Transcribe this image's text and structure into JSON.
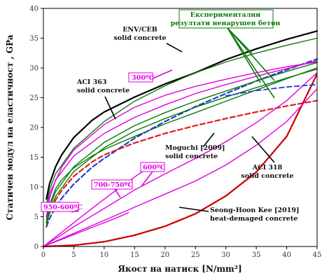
{
  "chart_data": {
    "type": "line",
    "xlabel": "Якост на натиск [N/mm²]",
    "ylabel": "Статичен модул на еластичност , GPa",
    "xlim": [
      0,
      45
    ],
    "ylim": [
      0,
      40
    ],
    "xticks": [
      "0",
      "5",
      "10",
      "15",
      "20",
      "25",
      "30",
      "35",
      "40",
      "45"
    ],
    "yticks": [
      "0",
      "5",
      "10",
      "15",
      "20",
      "25",
      "30",
      "35",
      "40"
    ],
    "grid": false,
    "series": [
      {
        "name": "ENV/CEB solid concrete",
        "color": "#000000",
        "dash": "",
        "width": 2.2,
        "points": [
          [
            0.5,
            8
          ],
          [
            1,
            10.5
          ],
          [
            2,
            13.4
          ],
          [
            3,
            15.4
          ],
          [
            5,
            18.3
          ],
          [
            8,
            21.2
          ],
          [
            10,
            22.6
          ],
          [
            15,
            25.1
          ],
          [
            20,
            27.3
          ],
          [
            25,
            29.2
          ],
          [
            30,
            31.4
          ],
          [
            35,
            33.2
          ],
          [
            40,
            34.8
          ],
          [
            45,
            36.2
          ]
        ]
      },
      {
        "name": "ACI 363 solid concrete",
        "color": "#0a7a0a",
        "dash": "",
        "width": 1.4,
        "points": [
          [
            0.5,
            4.5
          ],
          [
            1,
            7
          ],
          [
            2,
            9.7
          ],
          [
            3,
            11.2
          ],
          [
            5,
            13.2
          ],
          [
            8,
            15.2
          ],
          [
            10,
            16.3
          ],
          [
            15,
            18.5
          ],
          [
            20,
            20.6
          ],
          [
            25,
            22.5
          ],
          [
            30,
            24.4
          ],
          [
            35,
            26.3
          ],
          [
            40,
            28.2
          ],
          [
            45,
            30
          ]
        ]
      },
      {
        "name": "ACI 318 solid concrete",
        "color": "#2040d0",
        "dash": "7,4",
        "width": 2.2,
        "points": [
          [
            0.5,
            3.3
          ],
          [
            1,
            4.7
          ],
          [
            2,
            6.6
          ],
          [
            3,
            8.1
          ],
          [
            5,
            10.5
          ],
          [
            8,
            13.3
          ],
          [
            10,
            14.8
          ],
          [
            15,
            18.2
          ],
          [
            20,
            21
          ],
          [
            25,
            23.5
          ],
          [
            30,
            25.7
          ],
          [
            35,
            27.8
          ],
          [
            40,
            29.7
          ],
          [
            45,
            31.5
          ]
        ]
      },
      {
        "name": "Moguchi [2009] solid concrete",
        "color": "#e02020",
        "dash": "7,4",
        "width": 2.2,
        "points": [
          [
            0.5,
            4
          ],
          [
            1,
            5.6
          ],
          [
            2,
            7.8
          ],
          [
            3,
            9.4
          ],
          [
            5,
            11.8
          ],
          [
            8,
            14.2
          ],
          [
            10,
            15.4
          ],
          [
            15,
            17.4
          ],
          [
            20,
            19
          ],
          [
            25,
            20.3
          ],
          [
            30,
            21.5
          ],
          [
            35,
            22.6
          ],
          [
            40,
            23.6
          ],
          [
            45,
            24.5
          ]
        ]
      },
      {
        "name": "Seong-Hoon Kee [2019] heat-demaged concrete",
        "color": "#cc0000",
        "dash": "2,2",
        "width": 2.4,
        "points": [
          [
            0,
            0
          ],
          [
            5,
            0.2
          ],
          [
            10,
            0.8
          ],
          [
            15,
            1.9
          ],
          [
            20,
            3.4
          ],
          [
            25,
            5.5
          ],
          [
            30,
            8.5
          ],
          [
            35,
            12.5
          ],
          [
            40,
            18.5
          ],
          [
            45,
            29
          ]
        ]
      },
      {
        "name": "300ºC",
        "color": "#e000e0",
        "dash": "",
        "width": 1.4,
        "points": [
          [
            0.5,
            5
          ],
          [
            1,
            8
          ],
          [
            2,
            11.2
          ],
          [
            5,
            15.2
          ],
          [
            10,
            19
          ],
          [
            15,
            21.7
          ],
          [
            20,
            23.8
          ],
          [
            25,
            25.7
          ],
          [
            30,
            27.2
          ],
          [
            35,
            28.6
          ],
          [
            40,
            29.9
          ],
          [
            45,
            31.2
          ]
        ]
      },
      {
        "name": "300ºC",
        "color": "#e000e0",
        "dash": "",
        "width": 1.4,
        "points": [
          [
            0.5,
            6
          ],
          [
            1,
            8.8
          ],
          [
            3,
            13.3
          ],
          [
            5,
            16.2
          ],
          [
            10,
            20.5
          ],
          [
            15,
            23.4
          ],
          [
            20,
            25.4
          ],
          [
            25,
            26.9
          ],
          [
            30,
            28.1
          ],
          [
            35,
            29.2
          ],
          [
            40,
            30.2
          ],
          [
            45,
            31
          ]
        ]
      },
      {
        "name": "600ºC",
        "color": "#e000e0",
        "dash": "",
        "width": 1.4,
        "points": [
          [
            0,
            0
          ],
          [
            5,
            2.2
          ],
          [
            10,
            4.4
          ],
          [
            15,
            6.6
          ],
          [
            20,
            8.8
          ],
          [
            25,
            11
          ],
          [
            30,
            13.7
          ],
          [
            35,
            17
          ],
          [
            40,
            21
          ],
          [
            45,
            26.5
          ]
        ]
      },
      {
        "name": "600ºC",
        "color": "#e000e0",
        "dash": "",
        "width": 1.4,
        "points": [
          [
            0,
            0
          ],
          [
            5,
            3.3
          ],
          [
            10,
            6.4
          ],
          [
            15,
            9.5
          ],
          [
            20,
            12.2
          ],
          [
            25,
            14.8
          ],
          [
            30,
            17.6
          ],
          [
            35,
            20.8
          ],
          [
            40,
            24.5
          ],
          [
            45,
            29.2
          ]
        ]
      },
      {
        "name": "700-750ºC",
        "color": "#e000e0",
        "dash": "",
        "width": 1.4,
        "points": [
          [
            0,
            0
          ],
          [
            4,
            3.2
          ],
          [
            8,
            6.4
          ],
          [
            12,
            9.5
          ],
          [
            16,
            12.4
          ],
          [
            19,
            14
          ]
        ]
      },
      {
        "name": "950-600ºC",
        "color": "#e000e0",
        "dash": "",
        "width": 1.4,
        "points": [
          [
            0,
            0
          ],
          [
            3,
            1.2
          ],
          [
            6,
            2.4
          ],
          [
            9,
            3.6
          ],
          [
            12,
            4.8
          ],
          [
            14,
            5.7
          ]
        ]
      },
      {
        "name": "Експериментални резултати ненарушен бетон",
        "color": "#0a7a0a",
        "dash": "",
        "width": 1.4,
        "points": [
          [
            0.5,
            7
          ],
          [
            1,
            9.5
          ],
          [
            2,
            12.2
          ],
          [
            5,
            16.5
          ],
          [
            10,
            21
          ],
          [
            15,
            24.4
          ],
          [
            20,
            27
          ],
          [
            25,
            29.2
          ],
          [
            30,
            31
          ],
          [
            35,
            32.5
          ],
          [
            40,
            33.8
          ],
          [
            45,
            35
          ]
        ]
      },
      {
        "name": "Експериментални резултати ненарушен бетон",
        "color": "#0a7a0a",
        "dash": "",
        "width": 1.4,
        "points": [
          [
            0.5,
            3.5
          ],
          [
            1,
            5.8
          ],
          [
            2,
            8.4
          ],
          [
            5,
            12.6
          ],
          [
            10,
            16.6
          ],
          [
            15,
            19.4
          ],
          [
            20,
            21.5
          ],
          [
            25,
            23.4
          ],
          [
            30,
            25.1
          ],
          [
            35,
            26.7
          ],
          [
            40,
            28.3
          ],
          [
            45,
            29.8
          ]
        ]
      },
      {
        "name": "Експериментални резултати ненарушен бетон",
        "color": "#0a7a0a",
        "dash": "",
        "width": 1.4,
        "points": [
          [
            0.5,
            4
          ],
          [
            1,
            6.5
          ],
          [
            2,
            9.2
          ],
          [
            5,
            13.4
          ],
          [
            10,
            17.5
          ],
          [
            15,
            20.3
          ],
          [
            20,
            22.5
          ],
          [
            25,
            24.4
          ],
          [
            30,
            26.1
          ],
          [
            35,
            27.8
          ],
          [
            40,
            29.4
          ],
          [
            45,
            30.9
          ]
        ]
      },
      {
        "name": "ACI 318 solid concrete",
        "color": "#2040d0",
        "dash": "7,4",
        "width": 1.8,
        "points": [
          [
            30,
            25.3
          ],
          [
            35,
            26.2
          ],
          [
            40,
            26.8
          ],
          [
            45,
            27.2
          ]
        ]
      }
    ],
    "annotations": [
      {
        "text": "ENV/CEB",
        "style": "annot"
      },
      {
        "text": "solid concrete",
        "style": "annot"
      },
      {
        "text": "Експериментални",
        "style": "annot-green"
      },
      {
        "text": "резултати ненарушен бетон",
        "style": "annot-green"
      },
      {
        "text": "ACI 363",
        "style": "annot"
      },
      {
        "text": "solid concrete",
        "style": "annot"
      },
      {
        "text": "300ºC",
        "style": "annot-magenta"
      },
      {
        "text": "Moguchi [2009]",
        "style": "annot"
      },
      {
        "text": "solid concrete",
        "style": "annot"
      },
      {
        "text": "ACI 318",
        "style": "annot"
      },
      {
        "text": "solid concrete",
        "style": "annot"
      },
      {
        "text": "600ºC",
        "style": "annot-magenta"
      },
      {
        "text": "700-750ºC",
        "style": "annot-magenta"
      },
      {
        "text": "950-600ºC",
        "style": "annot-magenta"
      },
      {
        "text": "Seong-Hoon Kee [2019]",
        "style": "annot"
      },
      {
        "text": "heat-demaged concrete",
        "style": "annot"
      }
    ]
  }
}
